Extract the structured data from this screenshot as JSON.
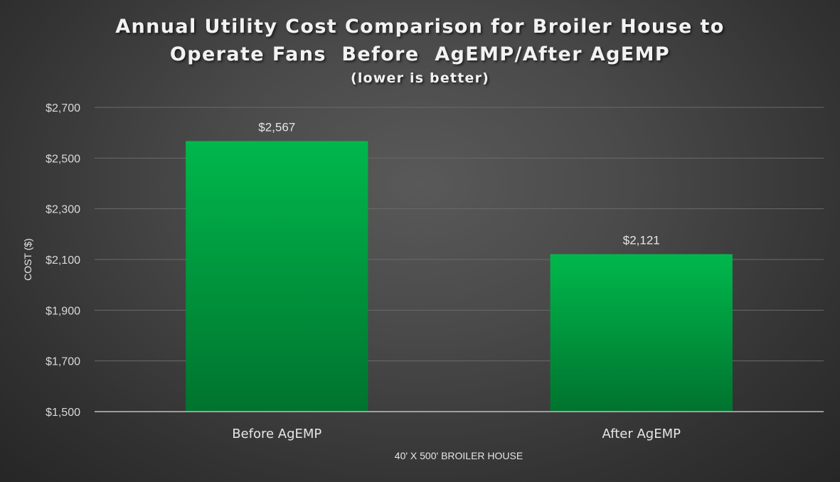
{
  "chart_data": {
    "type": "bar",
    "title_lines": [
      "Annual Utility Cost Comparison for Broiler House to",
      "Operate Fans  Before  AgEMP/After AgEMP"
    ],
    "subtitle": "(lower is better)",
    "xlabel": "40' X 500' BROILER HOUSE",
    "ylabel": "COST ($)",
    "categories": [
      "Before AgEMP",
      "After AgEMP"
    ],
    "values": [
      2567,
      2121
    ],
    "data_labels": [
      "$2,567",
      "$2,121"
    ],
    "ylim": [
      1500,
      2700
    ],
    "yticks": [
      1500,
      1700,
      1900,
      2100,
      2300,
      2500,
      2700
    ],
    "ytick_labels": [
      "$1,500",
      "$1,700",
      "$1,900",
      "$2,100",
      "$2,300",
      "$2,500",
      "$2,700"
    ],
    "grid": true,
    "legend": "none",
    "colors": {
      "bar_top": "#00b84c",
      "bar_bottom": "#00732e",
      "gridline": "#6a6a6a",
      "axis_line": "#bfbfbf"
    }
  }
}
